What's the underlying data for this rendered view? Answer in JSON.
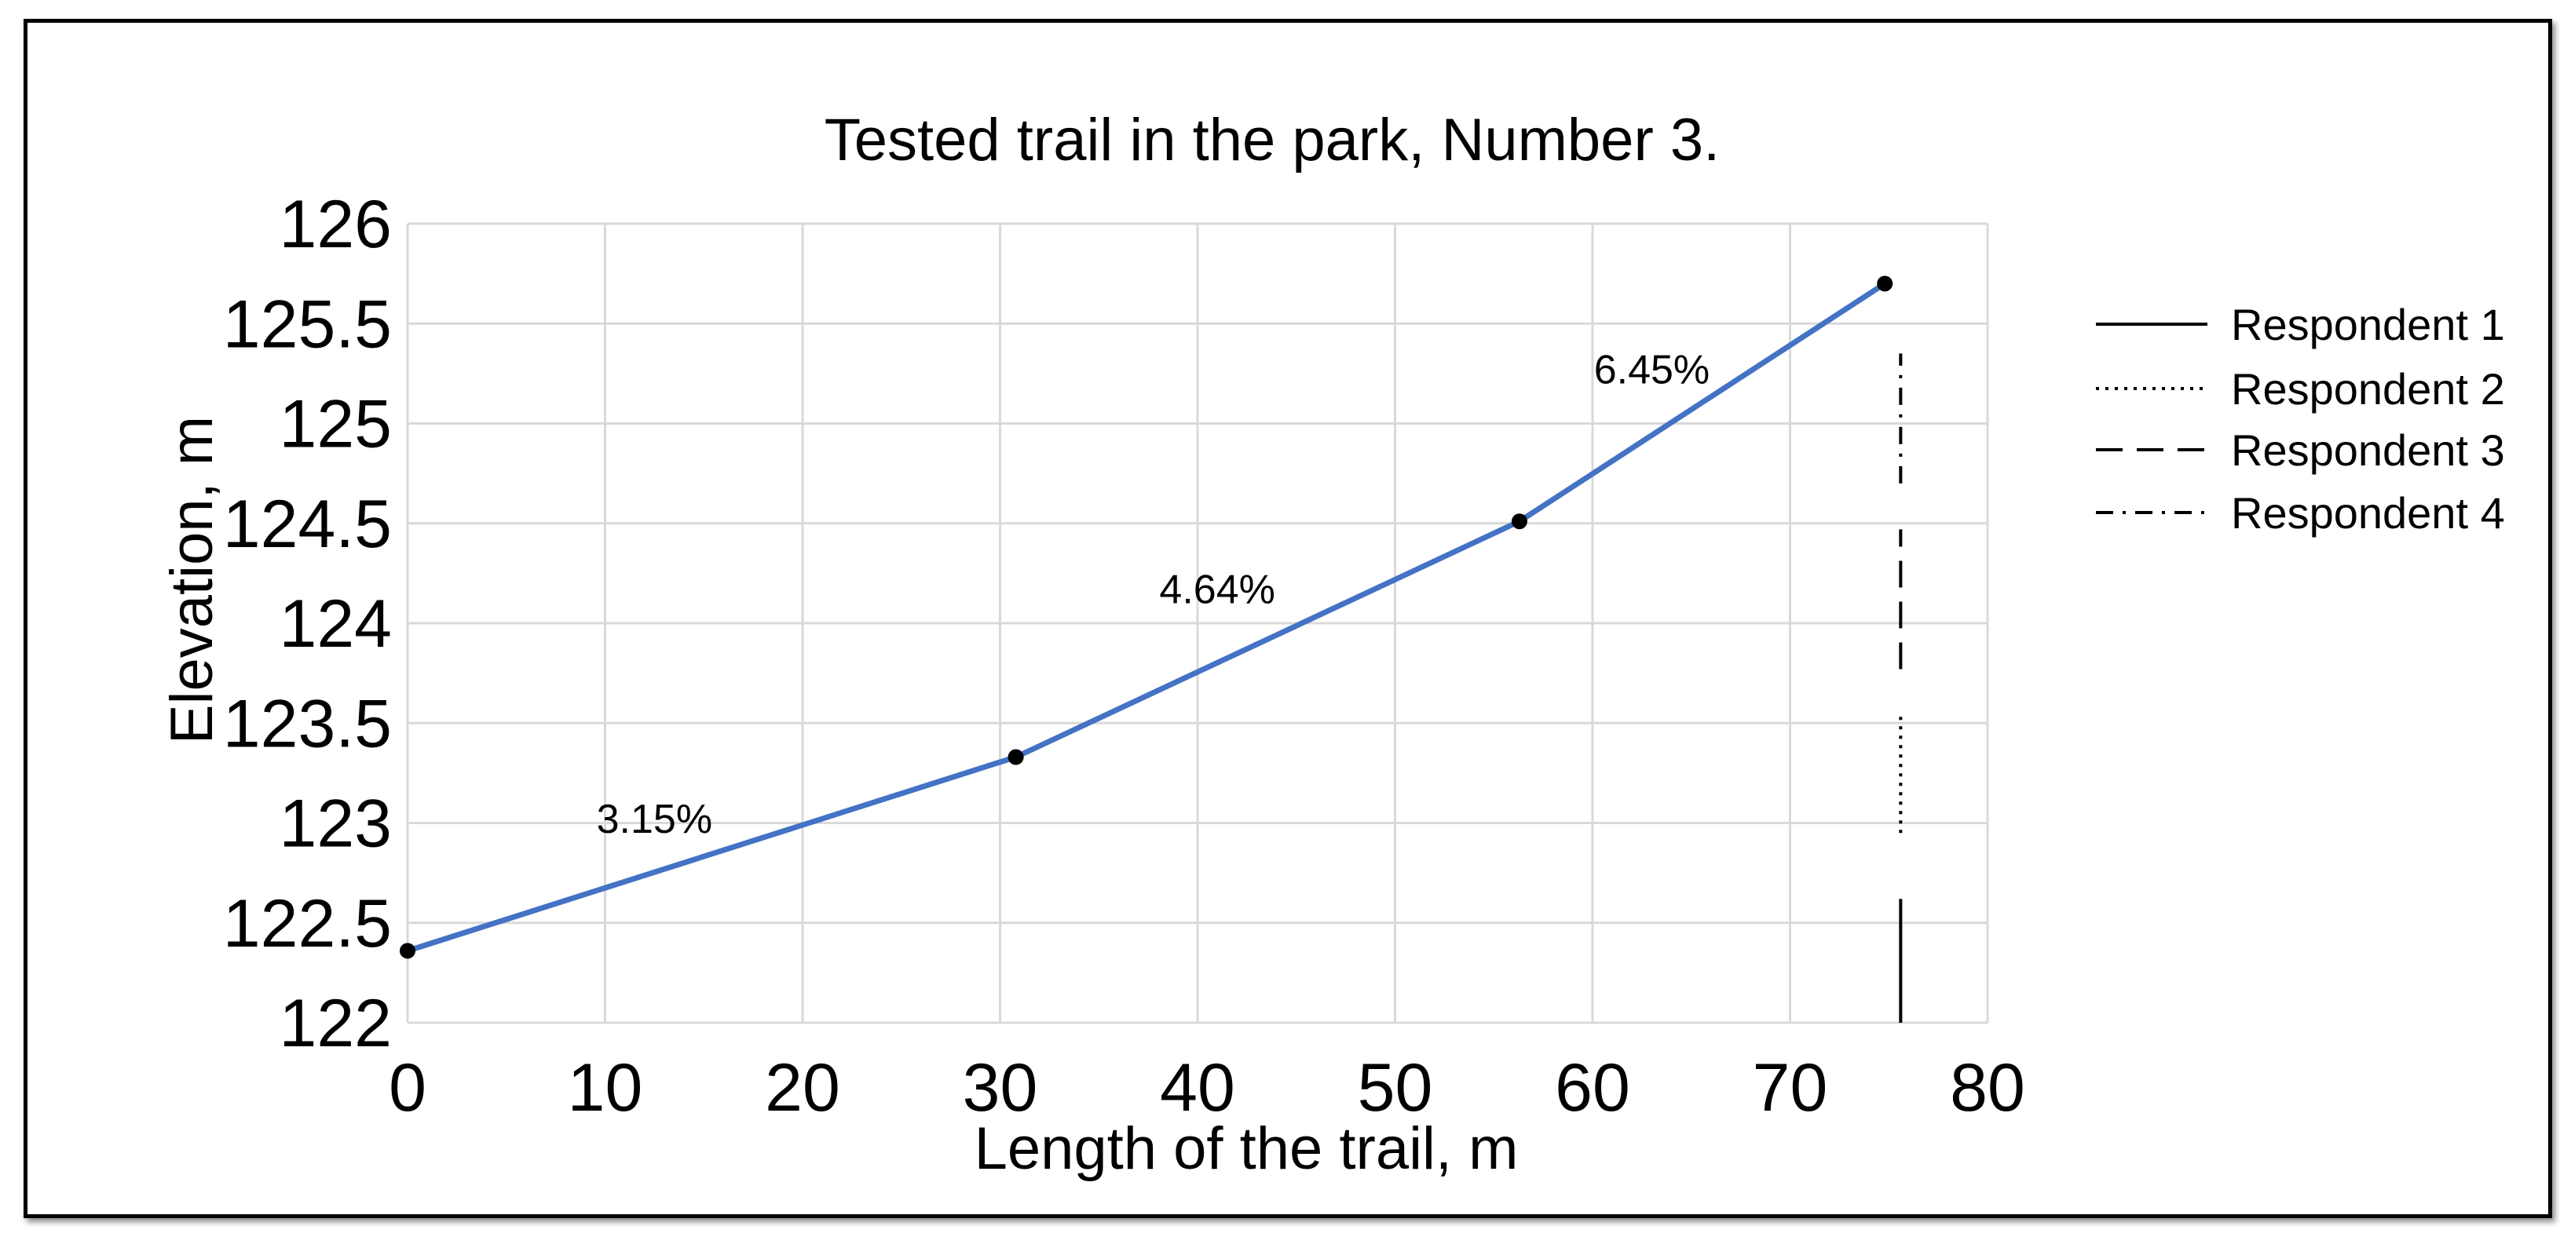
{
  "chart_data": {
    "type": "line",
    "title": "Tested trail in the park, Number 3.",
    "xlabel": "Length of the trail, m",
    "ylabel": "Elevation, m",
    "xlim": [
      0,
      80
    ],
    "ylim": [
      122,
      126
    ],
    "xticks": [
      "0",
      "10",
      "20",
      "30",
      "40",
      "50",
      "60",
      "70",
      "80"
    ],
    "yticks": [
      "122",
      "122.5",
      "123",
      "123.5",
      "124",
      "124.5",
      "125",
      "125.5",
      "126"
    ],
    "grid": true,
    "line_color": "#4472C4",
    "series": [
      {
        "x": [
          0,
          30.8,
          56.3,
          74.8
        ],
        "y": [
          122.36,
          123.33,
          124.51,
          125.7
        ]
      }
    ],
    "segment_labels": [
      {
        "text": "3.15%",
        "x": 12.5,
        "y": 122.95
      },
      {
        "text": "4.64%",
        "x": 41,
        "y": 124.1
      },
      {
        "text": "6.45%",
        "x": 63,
        "y": 125.2
      }
    ],
    "respondent_bars": [
      {
        "name": "Respondent 1",
        "style": "solid",
        "x": 75.6,
        "y_from": 122.0,
        "y_to": 122.62
      },
      {
        "name": "Respondent 2",
        "style": "dotted",
        "x": 75.6,
        "y_from": 122.95,
        "y_to": 123.55
      },
      {
        "name": "Respondent 3",
        "style": "dashed",
        "x": 75.6,
        "y_from": 123.77,
        "y_to": 124.47
      },
      {
        "name": "Respondent 4",
        "style": "dashdot",
        "x": 75.6,
        "y_from": 124.7,
        "y_to": 125.35
      }
    ],
    "legend": {
      "position": "right",
      "entries": [
        {
          "label": "Respondent 1",
          "style": "solid"
        },
        {
          "label": "Respondent 2",
          "style": "dotted"
        },
        {
          "label": "Respondent 3",
          "style": "dashed"
        },
        {
          "label": "Respondent 4",
          "style": "dashdot"
        }
      ]
    }
  }
}
